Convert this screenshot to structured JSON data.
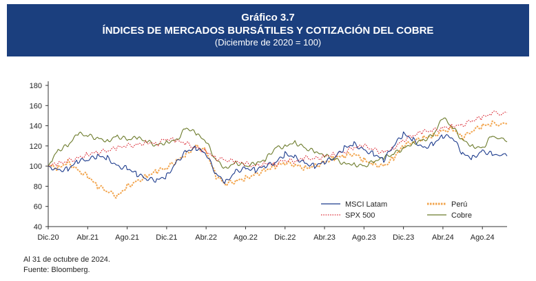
{
  "header": {
    "number": "Gráfico 3.7",
    "title": "ÍNDICES DE MERCADOS BURSÁTILES Y COTIZACIÓN DEL COBRE",
    "subtitle": "(Diciembre de 2020 = 100)"
  },
  "footer": {
    "note": "Al 31 de octubre de 2024.",
    "source": "Fuente: Bloomberg."
  },
  "chart_data": {
    "type": "line",
    "title": "ÍNDICES DE MERCADOS BURSÁTILES Y COTIZACIÓN DEL COBRE",
    "subtitle": "(Diciembre de 2020 = 100)",
    "x_unit": "months since Dic.20",
    "xlim": [
      0,
      46.5
    ],
    "ylim": [
      40,
      180
    ],
    "yticks": [
      40,
      60,
      80,
      100,
      120,
      140,
      160,
      180
    ],
    "categories": [
      "Dic.20",
      "Abr.21",
      "Ago.21",
      "Dic.21",
      "Abr.22",
      "Ago.22",
      "Dic.22",
      "Abr.23",
      "Ago.23",
      "Dic.23",
      "Abr.24",
      "Ago.24"
    ],
    "category_x": [
      0,
      4,
      8,
      12,
      16,
      20,
      24,
      28,
      32,
      36,
      40,
      44
    ],
    "legend": [
      "MSCI Latam",
      "SPX 500",
      "Perú",
      "Cobre"
    ],
    "series": [
      {
        "name": "MSCI Latam",
        "color": "#1b3a8c",
        "style": "solid",
        "x": [
          0,
          1,
          2,
          3,
          4,
          5,
          6,
          7,
          8,
          9,
          10,
          11,
          12,
          13,
          14,
          15,
          16,
          17,
          18,
          19,
          20,
          21,
          22,
          23,
          24,
          25,
          26,
          27,
          28,
          29,
          30,
          31,
          32,
          33,
          34,
          35,
          36,
          37,
          38,
          39,
          40,
          41,
          42,
          43,
          44,
          45,
          46.5
        ],
        "values": [
          100,
          96,
          97,
          105,
          106,
          110,
          108,
          100,
          98,
          92,
          87,
          86,
          90,
          104,
          115,
          118,
          112,
          92,
          84,
          95,
          98,
          96,
          100,
          103,
          112,
          109,
          103,
          100,
          104,
          108,
          118,
          122,
          116,
          112,
          106,
          120,
          132,
          126,
          118,
          122,
          130,
          128,
          112,
          108,
          115,
          112,
          110
        ]
      },
      {
        "name": "SPX 500",
        "color": "#d9232d",
        "style": "dotted",
        "x": [
          0,
          1,
          2,
          3,
          4,
          5,
          6,
          7,
          8,
          9,
          10,
          11,
          12,
          13,
          14,
          15,
          16,
          17,
          18,
          19,
          20,
          21,
          22,
          23,
          24,
          25,
          26,
          27,
          28,
          29,
          30,
          31,
          32,
          33,
          34,
          35,
          36,
          37,
          38,
          39,
          40,
          41,
          42,
          43,
          44,
          45,
          46.5
        ],
        "values": [
          100,
          102,
          105,
          108,
          112,
          114,
          115,
          118,
          120,
          121,
          124,
          122,
          127,
          125,
          122,
          118,
          115,
          108,
          106,
          104,
          102,
          100,
          103,
          102,
          106,
          104,
          108,
          107,
          110,
          112,
          114,
          118,
          120,
          116,
          114,
          118,
          126,
          130,
          134,
          135,
          138,
          140,
          141,
          145,
          148,
          152,
          153
        ]
      },
      {
        "name": "Perú",
        "color": "#f2a44c",
        "style": "dashed",
        "x": [
          0,
          1,
          2,
          3,
          4,
          5,
          6,
          7,
          8,
          9,
          10,
          11,
          12,
          13,
          14,
          15,
          16,
          17,
          18,
          19,
          20,
          21,
          22,
          23,
          24,
          25,
          26,
          27,
          28,
          29,
          30,
          31,
          32,
          33,
          34,
          35,
          36,
          37,
          38,
          39,
          40,
          41,
          42,
          43,
          44,
          45,
          46.5
        ],
        "values": [
          100,
          98,
          104,
          96,
          90,
          80,
          75,
          70,
          80,
          85,
          90,
          95,
          98,
          105,
          112,
          120,
          115,
          90,
          82,
          85,
          88,
          92,
          96,
          100,
          103,
          101,
          98,
          100,
          104,
          108,
          110,
          112,
          106,
          102,
          100,
          108,
          120,
          124,
          128,
          130,
          135,
          137,
          128,
          135,
          140,
          142,
          142
        ]
      },
      {
        "name": "Cobre",
        "color": "#6b7a2a",
        "style": "solid",
        "x": [
          0,
          1,
          2,
          3,
          4,
          5,
          6,
          7,
          8,
          9,
          10,
          11,
          12,
          13,
          14,
          15,
          16,
          17,
          18,
          19,
          20,
          21,
          22,
          23,
          24,
          25,
          26,
          27,
          28,
          29,
          30,
          31,
          32,
          33,
          34,
          35,
          36,
          37,
          38,
          39,
          40,
          41,
          42,
          43,
          44,
          45,
          46.5
        ],
        "values": [
          100,
          116,
          120,
          132,
          130,
          128,
          125,
          130,
          126,
          128,
          124,
          121,
          124,
          126,
          138,
          132,
          124,
          106,
          98,
          104,
          100,
          102,
          106,
          118,
          120,
          124,
          118,
          114,
          110,
          107,
          103,
          102,
          100,
          104,
          108,
          112,
          118,
          123,
          126,
          130,
          148,
          138,
          126,
          120,
          118,
          130,
          124
        ]
      }
    ]
  }
}
